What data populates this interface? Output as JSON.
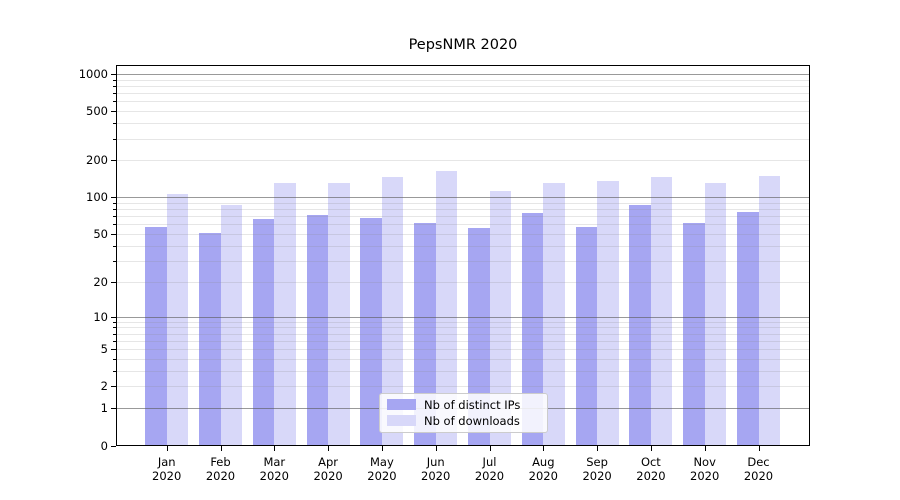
{
  "title": "PepsNMR 2020",
  "chart_data": {
    "type": "bar",
    "title": "PepsNMR 2020",
    "categories": [
      "Jan 2020",
      "Feb 2020",
      "Mar 2020",
      "Apr 2020",
      "May 2020",
      "Jun 2020",
      "Jul 2020",
      "Aug 2020",
      "Sep 2020",
      "Oct 2020",
      "Nov 2020",
      "Dec 2020"
    ],
    "series": [
      {
        "name": "Nb of distinct IPs",
        "color": "#a6a6f2",
        "values": [
          57,
          51,
          66,
          72,
          68,
          62,
          56,
          75,
          57,
          87,
          62,
          76
        ]
      },
      {
        "name": "Nb of downloads",
        "color": "#d8d8f9",
        "values": [
          107,
          86,
          131,
          130,
          145,
          164,
          112,
          131,
          136,
          147,
          131,
          149
        ]
      }
    ],
    "xlabel": "",
    "ylabel": "",
    "yscale": "log1p",
    "y_ticks": [
      0,
      1,
      2,
      5,
      10,
      20,
      50,
      100,
      200,
      500,
      1000
    ],
    "ylim": [
      0,
      1180
    ],
    "grid": true,
    "legend_position": "lower center"
  }
}
